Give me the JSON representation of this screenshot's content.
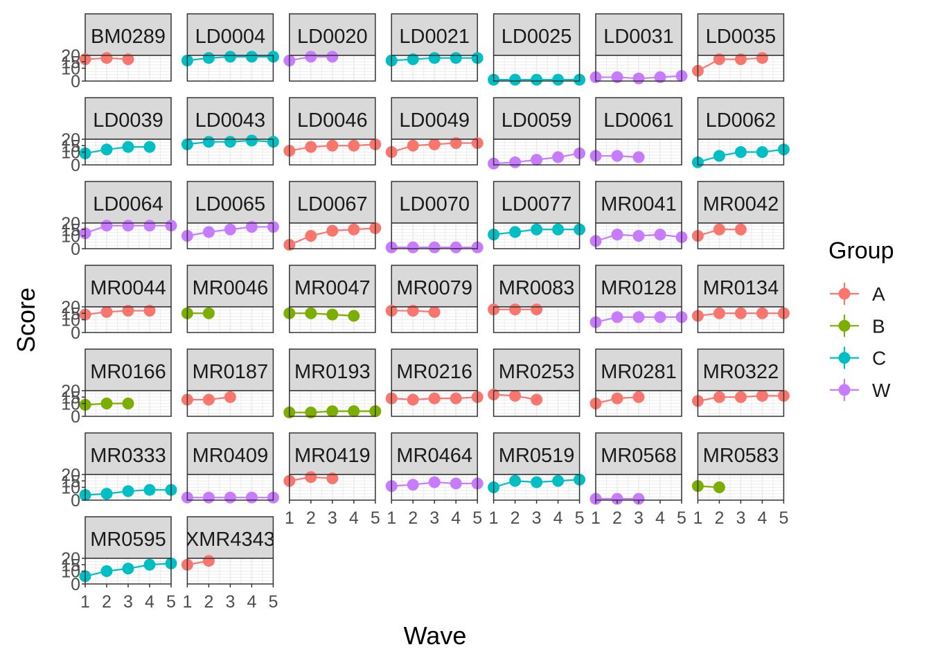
{
  "chart_data": {
    "type": "line",
    "xlabel": "Wave",
    "ylabel": "Score",
    "x_ticks": [
      "1",
      "2",
      "3",
      "4",
      "5"
    ],
    "y_ticks": [
      "0",
      "10",
      "15",
      "20"
    ],
    "xlim": [
      1,
      5
    ],
    "ylim": [
      0,
      20
    ],
    "grid": true,
    "legend": {
      "title": "Group",
      "position": "right",
      "entries": [
        {
          "name": "A",
          "color": "#F8766D"
        },
        {
          "name": "B",
          "color": "#7CAE00"
        },
        {
          "name": "C",
          "color": "#00BFC4"
        },
        {
          "name": "W",
          "color": "#C77CFF"
        }
      ]
    },
    "panels": [
      {
        "id": "BM0289",
        "group": "A",
        "values": [
          17,
          18,
          17
        ]
      },
      {
        "id": "LD0004",
        "group": "C",
        "values": [
          16,
          18,
          19,
          19,
          19
        ]
      },
      {
        "id": "LD0020",
        "group": "W",
        "values": [
          16,
          19,
          19
        ]
      },
      {
        "id": "LD0021",
        "group": "C",
        "values": [
          16,
          17,
          18,
          18,
          18
        ]
      },
      {
        "id": "LD0025",
        "group": "C",
        "values": [
          1,
          1,
          1,
          1,
          1
        ]
      },
      {
        "id": "LD0031",
        "group": "W",
        "values": [
          3,
          3,
          2,
          3,
          4
        ]
      },
      {
        "id": "LD0035",
        "group": "A",
        "values": [
          8,
          17,
          17,
          18
        ]
      },
      {
        "id": "LD0039",
        "group": "C",
        "values": [
          9,
          12,
          14,
          14
        ]
      },
      {
        "id": "LD0043",
        "group": "C",
        "values": [
          16,
          18,
          18,
          19,
          18
        ]
      },
      {
        "id": "LD0046",
        "group": "A",
        "values": [
          11,
          14,
          15,
          15,
          16
        ]
      },
      {
        "id": "LD0049",
        "group": "A",
        "values": [
          10,
          15,
          16,
          17,
          17
        ]
      },
      {
        "id": "LD0059",
        "group": "W",
        "values": [
          1,
          2,
          4,
          6,
          9
        ]
      },
      {
        "id": "LD0061",
        "group": "W",
        "values": [
          7,
          7,
          6
        ]
      },
      {
        "id": "LD0062",
        "group": "C",
        "values": [
          2,
          7,
          10,
          10,
          12
        ]
      },
      {
        "id": "LD0064",
        "group": "W",
        "values": [
          12,
          18,
          18,
          18,
          18
        ]
      },
      {
        "id": "LD0065",
        "group": "W",
        "values": [
          10,
          13,
          15,
          17,
          17
        ]
      },
      {
        "id": "LD0067",
        "group": "A",
        "values": [
          3,
          10,
          14,
          15,
          16
        ]
      },
      {
        "id": "LD0070",
        "group": "W",
        "values": [
          1,
          1,
          1,
          1,
          1
        ]
      },
      {
        "id": "LD0077",
        "group": "C",
        "values": [
          11,
          13,
          15,
          15,
          15
        ]
      },
      {
        "id": "MR0041",
        "group": "W",
        "values": [
          6,
          11,
          10,
          11,
          9
        ]
      },
      {
        "id": "MR0042",
        "group": "A",
        "values": [
          10,
          15,
          15
        ]
      },
      {
        "id": "MR0044",
        "group": "A",
        "values": [
          14,
          16,
          17,
          17
        ]
      },
      {
        "id": "MR0046",
        "group": "B",
        "values": [
          15,
          15
        ]
      },
      {
        "id": "MR0047",
        "group": "B",
        "values": [
          15,
          15,
          14,
          13
        ]
      },
      {
        "id": "MR0079",
        "group": "A",
        "values": [
          17,
          17,
          16
        ]
      },
      {
        "id": "MR0083",
        "group": "A",
        "values": [
          18,
          18,
          18
        ]
      },
      {
        "id": "MR0128",
        "group": "W",
        "values": [
          8,
          12,
          12,
          12,
          12
        ]
      },
      {
        "id": "MR0134",
        "group": "A",
        "values": [
          13,
          15,
          15,
          15,
          15
        ]
      },
      {
        "id": "MR0166",
        "group": "B",
        "values": [
          9,
          10,
          10
        ]
      },
      {
        "id": "MR0187",
        "group": "A",
        "values": [
          13,
          13,
          15
        ]
      },
      {
        "id": "MR0193",
        "group": "B",
        "values": [
          3,
          3,
          4,
          4,
          4
        ]
      },
      {
        "id": "MR0216",
        "group": "A",
        "values": [
          14,
          13,
          14,
          14,
          15
        ]
      },
      {
        "id": "MR0253",
        "group": "A",
        "values": [
          17,
          16,
          13
        ]
      },
      {
        "id": "MR0281",
        "group": "A",
        "values": [
          10,
          14,
          15
        ]
      },
      {
        "id": "MR0322",
        "group": "A",
        "values": [
          12,
          15,
          15,
          16,
          16
        ]
      },
      {
        "id": "MR0333",
        "group": "C",
        "values": [
          4,
          5,
          7,
          8,
          8
        ]
      },
      {
        "id": "MR0409",
        "group": "W",
        "values": [
          2,
          2,
          2,
          2,
          2
        ]
      },
      {
        "id": "MR0419",
        "group": "A",
        "values": [
          15,
          18,
          17
        ]
      },
      {
        "id": "MR0464",
        "group": "W",
        "values": [
          11,
          12,
          14,
          13,
          13
        ]
      },
      {
        "id": "MR0519",
        "group": "C",
        "values": [
          10,
          15,
          14,
          15,
          16
        ]
      },
      {
        "id": "MR0568",
        "group": "W",
        "values": [
          1,
          1,
          1
        ]
      },
      {
        "id": "MR0583",
        "group": "B",
        "values": [
          11,
          10
        ]
      },
      {
        "id": "MR0595",
        "group": "C",
        "values": [
          6,
          10,
          12,
          15,
          16
        ]
      },
      {
        "id": "XMR4343",
        "group": "A",
        "values": [
          15,
          18
        ]
      }
    ]
  }
}
